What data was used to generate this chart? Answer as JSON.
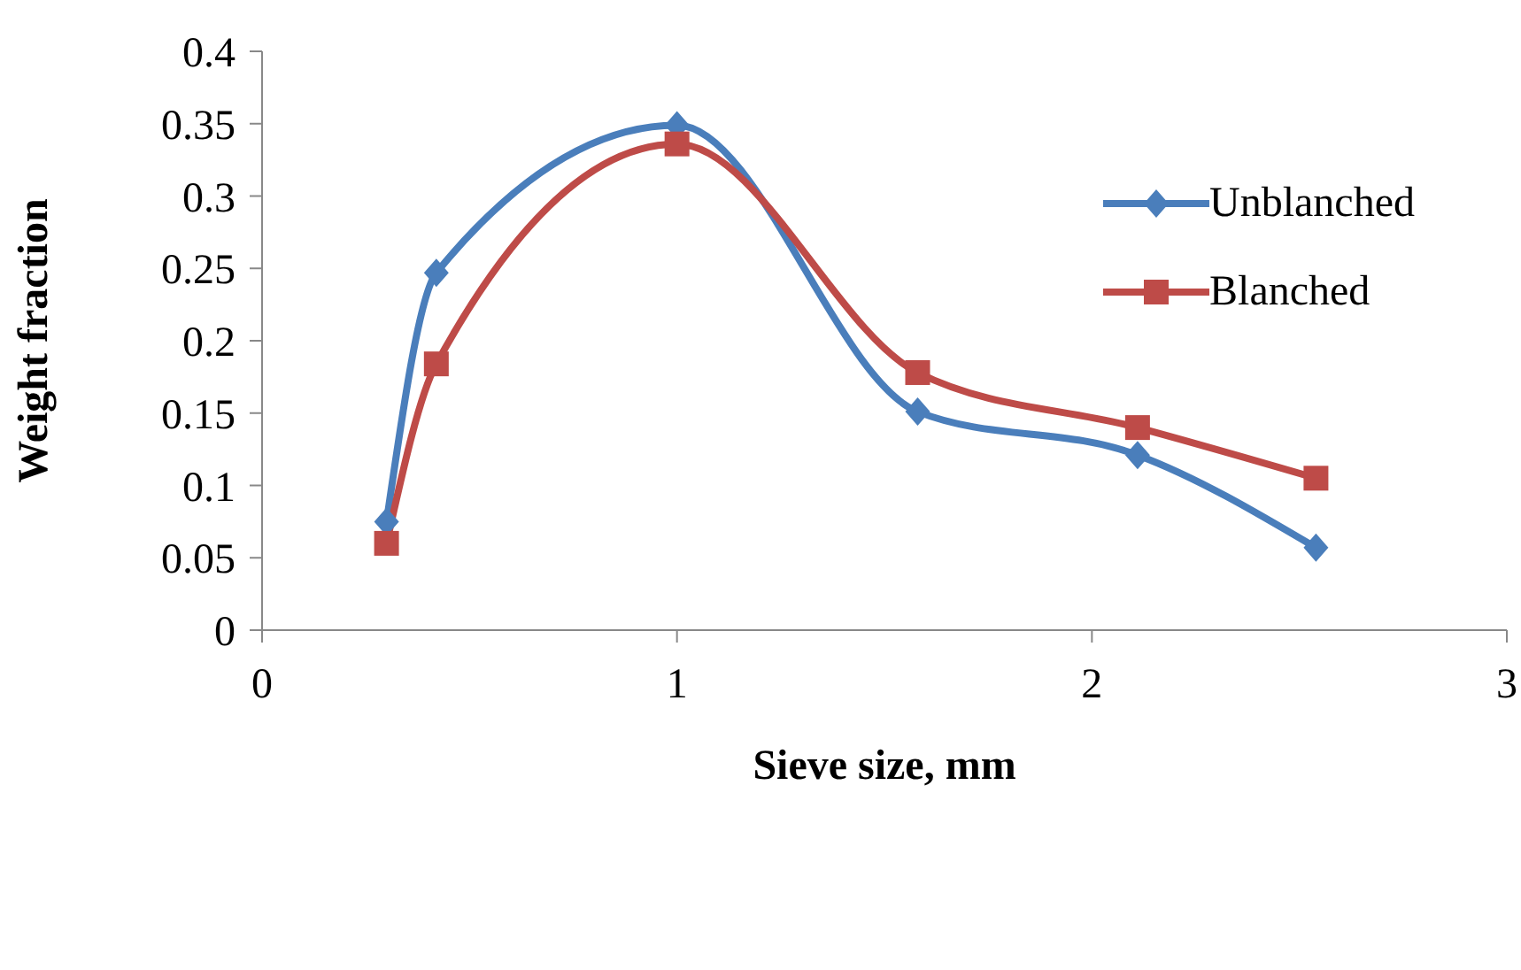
{
  "chart_data": {
    "type": "line",
    "xlabel": "Sieve size, mm",
    "ylabel": "Weight fraction",
    "xlim": [
      0,
      3
    ],
    "xticks": [
      0,
      1,
      2,
      3
    ],
    "ylim": [
      0,
      0.4
    ],
    "yticks": [
      0,
      0.05,
      0.1,
      0.15,
      0.2,
      0.25,
      0.3,
      0.35,
      0.4
    ],
    "grid": false,
    "legend": "top right",
    "series": [
      {
        "name": "Unblanched",
        "color": "#4a7ebb",
        "marker": "diamond",
        "x": [
          0.3,
          0.42,
          1.0,
          1.58,
          2.11,
          2.54
        ],
        "values": [
          0.075,
          0.247,
          0.349,
          0.151,
          0.121,
          0.057
        ]
      },
      {
        "name": "Blanched",
        "color": "#be4b48",
        "marker": "square",
        "x": [
          0.3,
          0.42,
          1.0,
          1.58,
          2.11,
          2.54
        ],
        "values": [
          0.06,
          0.184,
          0.336,
          0.178,
          0.14,
          0.105
        ]
      }
    ]
  }
}
